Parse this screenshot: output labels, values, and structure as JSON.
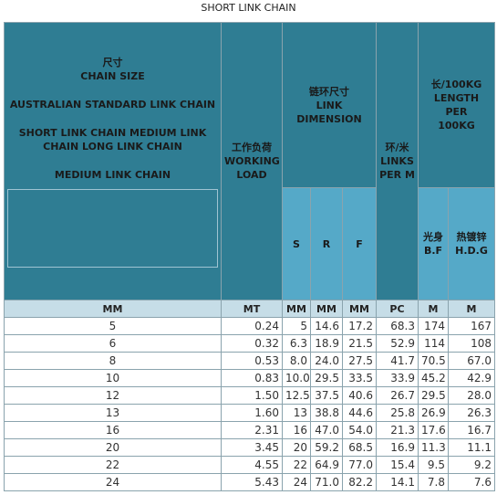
{
  "title": "SHORT LINK CHAIN",
  "header": {
    "chain_size": [
      "尺寸",
      "CHAIN SIZE",
      "AUSTRALIAN STANDARD LINK CHAIN",
      "SHORT LINK CHAIN MEDIUM LINK",
      "CHAIN LONG LINK CHAIN",
      "MEDIUM LINK CHAIN"
    ],
    "working_load": [
      "工作负荷",
      "WORKING",
      "LOAD"
    ],
    "link_dimension": [
      "链环尺寸",
      "LINK",
      "DIMENSION"
    ],
    "links_per_m": [
      "环/米",
      "LINKS",
      "PER M"
    ],
    "length_per": [
      "长/100KG",
      "LENGTH PER",
      "100KG"
    ],
    "sub": [
      [
        "S"
      ],
      [
        "R"
      ],
      [
        "F"
      ],
      [
        "光身",
        "B.F"
      ],
      [
        "热镀锌",
        "H.D.G"
      ]
    ]
  },
  "units": [
    "MM",
    "MT",
    "MM",
    "MM",
    "MM",
    "PC",
    "M",
    "M"
  ],
  "table": {
    "rows": [
      [
        "5",
        "0.24",
        "5",
        "14.6",
        "17.2",
        "68.3",
        "174",
        "167"
      ],
      [
        "6",
        "0.32",
        "6.3",
        "18.9",
        "21.5",
        "52.9",
        "114",
        "108"
      ],
      [
        "8",
        "0.53",
        "8.0",
        "24.0",
        "27.5",
        "41.7",
        "70.5",
        "67.0"
      ],
      [
        "10",
        "0.83",
        "10.0",
        "29.5",
        "33.5",
        "33.9",
        "45.2",
        "42.9"
      ],
      [
        "12",
        "1.50",
        "12.5",
        "37.5",
        "40.6",
        "26.7",
        "29.5",
        "28.0"
      ],
      [
        "13",
        "1.60",
        "13",
        "38.8",
        "44.6",
        "25.8",
        "26.9",
        "26.3"
      ],
      [
        "16",
        "2.31",
        "16",
        "47.0",
        "54.0",
        "21.3",
        "17.6",
        "16.7"
      ],
      [
        "20",
        "3.45",
        "20",
        "59.2",
        "68.5",
        "16.9",
        "11.3",
        "11.1"
      ],
      [
        "22",
        "4.55",
        "22",
        "64.9",
        "77.0",
        "15.4",
        "9.5",
        "9.2"
      ],
      [
        "24",
        "5.43",
        "24",
        "71.0",
        "82.2",
        "14.1",
        "7.8",
        "7.6"
      ]
    ]
  }
}
